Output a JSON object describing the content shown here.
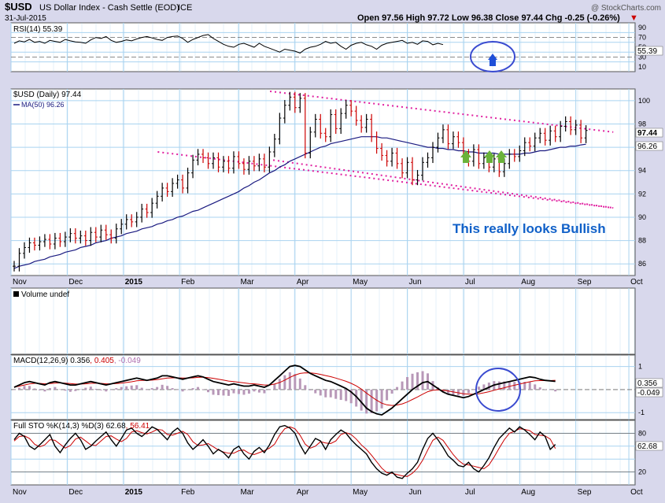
{
  "header": {
    "symbol": "$USD",
    "name": "US Dollar Index - Cash Settle (EOD)",
    "exchange": "ICE",
    "date": "31-Jul-2015",
    "ohlc_text": "Open 97.56  High 97.72  Low 96.38  Close 97.44  Chg -0.25 (-0.26%)",
    "chg_arrow": "▼",
    "watermark": "@ StockCharts.com"
  },
  "colors": {
    "bg": "#d8d8ec",
    "panel": "#ffffff",
    "grid": "#a9d3f0",
    "up": "#000000",
    "down": "#cc0000",
    "ma": "#1a1a80",
    "trendline": "#e020a0",
    "annotation": "#1060c8",
    "arrow_green": "#6ab23a",
    "circle": "#3a4bd0",
    "signal": "#cc0000",
    "hist": "#b898b8"
  },
  "annotations": {
    "text": "This really looks Bullish",
    "green_arrows": 3,
    "blue_arrow": 1,
    "circles": 2
  },
  "chart_data": [
    {
      "panel": "rsi",
      "type": "line",
      "title": "RSI(14) 55.39",
      "last": "55.39",
      "ylim": [
        0,
        100
      ],
      "yticks": [
        "90",
        "70",
        "50",
        "30",
        "10"
      ],
      "ref_levels": [
        30,
        70
      ],
      "values": [
        58,
        63,
        61,
        66,
        60,
        62,
        58,
        64,
        62,
        60,
        66,
        63,
        61,
        60,
        58,
        65,
        70,
        68,
        72,
        64,
        60,
        62,
        65,
        63,
        67,
        70,
        72,
        69,
        66,
        64,
        70,
        72,
        73,
        68,
        60,
        66,
        70,
        74,
        76,
        68,
        62,
        56,
        52,
        50,
        56,
        58,
        54,
        50,
        58,
        52,
        48,
        44,
        40,
        46,
        44,
        42,
        38,
        46,
        50,
        52,
        56,
        62,
        58,
        60,
        52,
        46,
        54,
        58,
        60,
        55,
        52,
        46,
        54,
        58,
        60,
        62,
        64,
        58,
        60,
        56,
        63,
        62,
        55,
        58,
        55.39
      ]
    },
    {
      "panel": "price",
      "type": "candlestick",
      "title": "$USD (Daily) 97.44",
      "ma_label": "MA(50) 96.26",
      "ylim": [
        85,
        101
      ],
      "yticks": [
        "100",
        "98",
        "96",
        "94",
        "92",
        "90",
        "88",
        "86"
      ],
      "last_price": "97.44",
      "last_ma": "96.26",
      "x_labels": [
        "Nov",
        "Dec",
        "2015",
        "Feb",
        "Mar",
        "Apr",
        "May",
        "Jun",
        "Jul",
        "Aug",
        "Sep",
        "Oct"
      ],
      "close": [
        85.8,
        86.9,
        87.4,
        87.8,
        87.6,
        87.9,
        88.1,
        87.7,
        88.2,
        87.9,
        88.3,
        88.6,
        88.2,
        88.4,
        88.0,
        88.7,
        88.3,
        88.9,
        88.5,
        88.2,
        89.0,
        89.4,
        89.8,
        89.6,
        90.0,
        90.7,
        90.4,
        91.2,
        91.8,
        92.5,
        92.2,
        92.9,
        93.2,
        92.5,
        93.8,
        94.9,
        95.4,
        95.1,
        94.6,
        95.1,
        94.3,
        94.8,
        94.2,
        95.2,
        94.6,
        94.1,
        94.8,
        94.4,
        95.0,
        94.3,
        95.6,
        96.7,
        98.5,
        99.6,
        100.3,
        99.4,
        100.2,
        95.5,
        97.3,
        98.4,
        97.2,
        96.9,
        98.8,
        97.6,
        98.9,
        99.6,
        99.1,
        98.3,
        97.7,
        98.4,
        96.9,
        95.9,
        95.3,
        94.8,
        95.5,
        94.6,
        93.8,
        94.7,
        93.2,
        93.6,
        94.7,
        95.1,
        96.0,
        96.8,
        97.5,
        96.3,
        96.9,
        96.4,
        95.4,
        94.8,
        95.8,
        94.6,
        95.1,
        94.3,
        95.0,
        93.9,
        94.6,
        95.4,
        95.2,
        95.7,
        96.4,
        96.1,
        96.8,
        97.2,
        96.6,
        97.4,
        96.9,
        97.8,
        98.2,
        97.5,
        97.9,
        96.8,
        97.44
      ],
      "ma50": [
        85.6,
        85.8,
        85.9,
        86.0,
        86.2,
        86.3,
        86.4,
        86.6,
        86.7,
        86.8,
        87.0,
        87.1,
        87.2,
        87.4,
        87.5,
        87.6,
        87.8,
        87.9,
        88.0,
        88.2,
        88.3,
        88.4,
        88.6,
        88.7,
        88.8,
        89.0,
        89.1,
        89.2,
        89.4,
        89.5,
        89.7,
        89.8,
        90.0,
        90.1,
        90.3,
        90.5,
        90.6,
        90.8,
        91.0,
        91.2,
        91.4,
        91.6,
        91.8,
        92.0,
        92.2,
        92.5,
        92.7,
        93.0,
        93.2,
        93.5,
        93.8,
        94.0,
        94.3,
        94.5,
        94.8,
        95.0,
        95.2,
        95.4,
        95.6,
        95.8,
        96.0,
        96.1,
        96.3,
        96.4,
        96.5,
        96.6,
        96.7,
        96.8,
        96.9,
        96.9,
        96.9,
        96.9,
        96.8,
        96.8,
        96.7,
        96.6,
        96.5,
        96.4,
        96.3,
        96.2,
        96.1,
        96.0,
        96.0,
        95.9,
        95.9,
        95.8,
        95.8,
        95.7,
        95.7,
        95.6,
        95.6,
        95.5,
        95.5,
        95.5,
        95.5,
        95.4,
        95.4,
        95.4,
        95.4,
        95.4,
        95.5,
        95.5,
        95.6,
        95.7,
        95.7,
        95.8,
        95.9,
        96.0,
        96.0,
        96.1,
        96.1,
        96.2,
        96.26
      ],
      "trendline_upper": {
        "x": [
          0.415,
          0.965
        ],
        "y": [
          100.8,
          97.3
        ]
      },
      "trendline_lower": {
        "x": [
          0.235,
          0.965
        ],
        "y": [
          95.6,
          90.8
        ]
      },
      "trendline_lower2": {
        "x": [
          0.42,
          0.965
        ],
        "y": [
          94.9,
          90.8
        ]
      }
    },
    {
      "panel": "volume",
      "type": "bar",
      "title": "Volume undef"
    },
    {
      "panel": "macd",
      "type": "line",
      "title": "MACD(12,26,9) 0.356, 0.405, -0.049",
      "title_parts": [
        "MACD(12,26,9) 0.356",
        ", 0.405",
        ", -0.049"
      ],
      "ylim": [
        -1.3,
        1.5
      ],
      "yticks": [
        "1",
        "0",
        "-1"
      ],
      "last_macd": "0.356",
      "last_hist": "-0.049",
      "macd": [
        0.1,
        0.2,
        0.3,
        0.35,
        0.3,
        0.25,
        0.2,
        0.3,
        0.35,
        0.3,
        0.25,
        0.2,
        0.2,
        0.25,
        0.3,
        0.35,
        0.3,
        0.25,
        0.2,
        0.25,
        0.3,
        0.35,
        0.4,
        0.45,
        0.5,
        0.45,
        0.4,
        0.45,
        0.5,
        0.6,
        0.6,
        0.55,
        0.5,
        0.45,
        0.5,
        0.55,
        0.6,
        0.55,
        0.45,
        0.35,
        0.3,
        0.25,
        0.2,
        0.25,
        0.2,
        0.15,
        0.15,
        0.2,
        0.15,
        0.1,
        0.2,
        0.4,
        0.6,
        0.8,
        1.0,
        1.05,
        1.0,
        0.85,
        0.7,
        0.6,
        0.5,
        0.4,
        0.35,
        0.25,
        0.15,
        0.05,
        -0.1,
        -0.3,
        -0.55,
        -0.8,
        -0.95,
        -1.05,
        -1.1,
        -0.95,
        -0.8,
        -0.6,
        -0.4,
        -0.2,
        0.0,
        0.15,
        0.3,
        0.35,
        0.2,
        0.05,
        -0.1,
        -0.2,
        -0.25,
        -0.3,
        -0.35,
        -0.3,
        -0.2,
        -0.1,
        0.0,
        0.1,
        0.2,
        0.25,
        0.3,
        0.35,
        0.4,
        0.45,
        0.5,
        0.55,
        0.52,
        0.45,
        0.4,
        0.38,
        0.356
      ],
      "signal": [
        0.1,
        0.15,
        0.2,
        0.25,
        0.27,
        0.27,
        0.25,
        0.26,
        0.28,
        0.29,
        0.28,
        0.26,
        0.24,
        0.24,
        0.25,
        0.27,
        0.28,
        0.27,
        0.25,
        0.25,
        0.26,
        0.28,
        0.31,
        0.34,
        0.38,
        0.4,
        0.4,
        0.41,
        0.43,
        0.47,
        0.5,
        0.51,
        0.51,
        0.5,
        0.5,
        0.51,
        0.53,
        0.54,
        0.52,
        0.49,
        0.45,
        0.41,
        0.37,
        0.35,
        0.32,
        0.29,
        0.26,
        0.25,
        0.23,
        0.2,
        0.2,
        0.24,
        0.31,
        0.41,
        0.53,
        0.63,
        0.7,
        0.73,
        0.72,
        0.7,
        0.66,
        0.61,
        0.56,
        0.5,
        0.43,
        0.36,
        0.27,
        0.16,
        0.02,
        -0.15,
        -0.31,
        -0.46,
        -0.59,
        -0.66,
        -0.69,
        -0.67,
        -0.62,
        -0.54,
        -0.43,
        -0.32,
        -0.2,
        -0.09,
        -0.03,
        -0.01,
        -0.03,
        -0.06,
        -0.1,
        -0.14,
        -0.18,
        -0.2,
        -0.2,
        -0.18,
        -0.14,
        -0.09,
        -0.03,
        0.03,
        0.08,
        0.14,
        0.19,
        0.24,
        0.29,
        0.34,
        0.38,
        0.39,
        0.39,
        0.39,
        0.405
      ]
    },
    {
      "panel": "sto",
      "type": "line",
      "title": "Full STO %K(14,3) %D(3) 62.68, 56.41",
      "title_parts": [
        "Full STO %K(14,3) %D(3) 62.68",
        ", 56.41"
      ],
      "ylim": [
        0,
        100
      ],
      "yticks": [
        "80",
        "62.68",
        "20"
      ],
      "ref_levels": [
        20,
        80
      ],
      "last_k": "62.68",
      "last_d": "56.41",
      "k": [
        70,
        80,
        75,
        60,
        55,
        62,
        70,
        78,
        60,
        50,
        62,
        72,
        80,
        70,
        55,
        60,
        68,
        75,
        82,
        70,
        60,
        72,
        85,
        88,
        80,
        75,
        82,
        90,
        86,
        78,
        70,
        82,
        88,
        80,
        65,
        55,
        62,
        70,
        60,
        48,
        55,
        50,
        42,
        55,
        60,
        48,
        40,
        52,
        58,
        50,
        62,
        78,
        90,
        92,
        88,
        80,
        62,
        48,
        60,
        72,
        68,
        55,
        70,
        78,
        85,
        80,
        70,
        62,
        55,
        48,
        35,
        25,
        18,
        15,
        20,
        12,
        10,
        18,
        25,
        35,
        55,
        72,
        80,
        70,
        58,
        45,
        38,
        30,
        28,
        35,
        25,
        20,
        30,
        42,
        58,
        72,
        80,
        88,
        82,
        90,
        85,
        78,
        70,
        82,
        75,
        55,
        62.68
      ],
      "d": [
        68,
        75,
        76,
        72,
        63,
        59,
        62,
        70,
        69,
        63,
        57,
        61,
        71,
        74,
        68,
        62,
        61,
        68,
        75,
        76,
        71,
        67,
        72,
        82,
        84,
        81,
        79,
        82,
        86,
        85,
        78,
        77,
        80,
        83,
        78,
        67,
        61,
        62,
        64,
        59,
        54,
        51,
        49,
        49,
        53,
        54,
        49,
        47,
        50,
        53,
        57,
        63,
        77,
        87,
        90,
        87,
        77,
        63,
        57,
        60,
        67,
        65,
        64,
        68,
        78,
        81,
        78,
        71,
        62,
        55,
        46,
        36,
        26,
        19,
        18,
        16,
        14,
        13,
        18,
        26,
        38,
        54,
        69,
        74,
        69,
        58,
        47,
        38,
        32,
        31,
        29,
        27,
        25,
        31,
        43,
        57,
        70,
        80,
        83,
        87,
        86,
        84,
        78,
        77,
        76,
        71,
        56.41
      ]
    }
  ]
}
